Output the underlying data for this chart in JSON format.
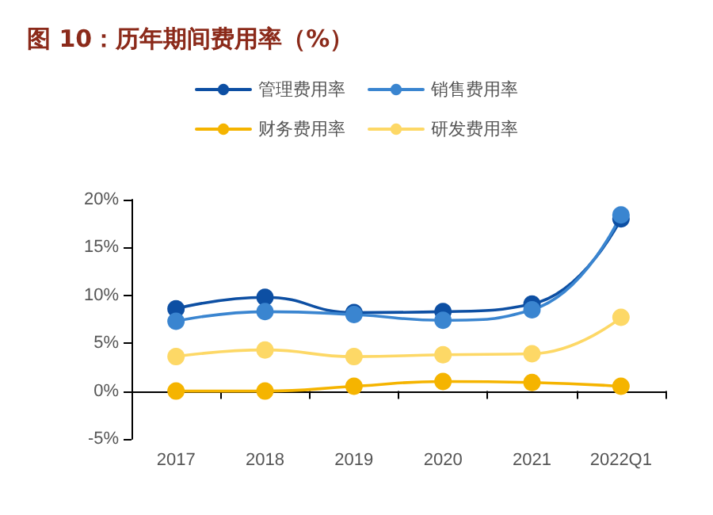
{
  "chart_data": {
    "type": "line",
    "title": "图 10：历年期间费用率（%）",
    "categories": [
      "2017",
      "2018",
      "2019",
      "2020",
      "2021",
      "2022Q1"
    ],
    "series": [
      {
        "name": "管理费用率",
        "color": "#0d4fa3",
        "values": [
          8.6,
          9.8,
          8.2,
          8.3,
          9.1,
          18.0
        ]
      },
      {
        "name": "销售费用率",
        "color": "#3a85d0",
        "values": [
          7.3,
          8.3,
          8.0,
          7.4,
          8.5,
          18.4
        ]
      },
      {
        "name": "财务费用率",
        "color": "#f5b400",
        "values": [
          0.0,
          0.0,
          0.5,
          1.0,
          0.9,
          0.5
        ]
      },
      {
        "name": "研发费用率",
        "color": "#fdd866",
        "values": [
          3.6,
          4.3,
          3.6,
          3.8,
          3.9,
          7.7
        ]
      }
    ],
    "ylim": [
      -5,
      20
    ],
    "yticks": [
      {
        "value": -5,
        "label": "-5%"
      },
      {
        "value": 0,
        "label": "0%"
      },
      {
        "value": 5,
        "label": "5%"
      },
      {
        "value": 10,
        "label": "10%"
      },
      {
        "value": 15,
        "label": "15%"
      },
      {
        "value": 20,
        "label": "20%"
      }
    ],
    "legend": "top",
    "marker": "circle",
    "line_style": "solid"
  }
}
